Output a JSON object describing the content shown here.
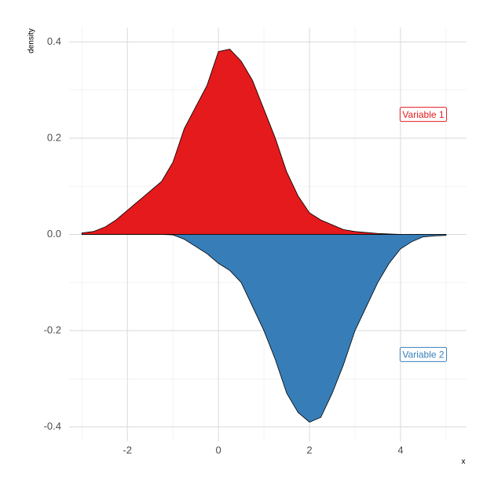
{
  "chart_data": {
    "type": "area",
    "x_label": "x",
    "y_label": "density",
    "x": [
      -3,
      -2.75,
      -2.5,
      -2.25,
      -2,
      -1.75,
      -1.5,
      -1.25,
      -1,
      -0.75,
      -0.5,
      -0.25,
      0,
      0.25,
      0.5,
      0.75,
      1,
      1.25,
      1.5,
      1.75,
      2,
      2.25,
      2.5,
      2.75,
      3,
      3.25,
      3.5,
      3.75,
      4,
      4.25,
      4.5,
      4.75,
      5
    ],
    "series": [
      {
        "name": "Variable 1",
        "color": "#e41a1c",
        "values": [
          0.003,
          0.006,
          0.015,
          0.03,
          0.05,
          0.07,
          0.09,
          0.11,
          0.15,
          0.22,
          0.265,
          0.31,
          0.38,
          0.385,
          0.36,
          0.32,
          0.26,
          0.2,
          0.13,
          0.08,
          0.045,
          0.03,
          0.02,
          0.01,
          0.006,
          0.004,
          0.002,
          0.001,
          0,
          0,
          0,
          0,
          0
        ]
      },
      {
        "name": "Variable 2",
        "color": "#377eb8",
        "values": [
          0,
          0,
          0,
          0,
          0,
          0,
          0,
          0,
          -0.001,
          -0.01,
          -0.025,
          -0.04,
          -0.06,
          -0.075,
          -0.1,
          -0.15,
          -0.2,
          -0.26,
          -0.33,
          -0.37,
          -0.39,
          -0.38,
          -0.33,
          -0.27,
          -0.2,
          -0.15,
          -0.1,
          -0.06,
          -0.03,
          -0.015,
          -0.005,
          -0.003,
          -0.002
        ]
      }
    ],
    "xlim": [
      -3.28,
      5.45
    ],
    "xticks": [
      -2,
      0,
      2,
      4
    ],
    "ylim": [
      -0.43,
      0.43
    ],
    "yticks": [
      {
        "value": -0.4,
        "label": "-0.4"
      },
      -0.2,
      {
        "value": 0,
        "label": "0.0"
      },
      0.2,
      0.4
    ],
    "grid": true
  }
}
